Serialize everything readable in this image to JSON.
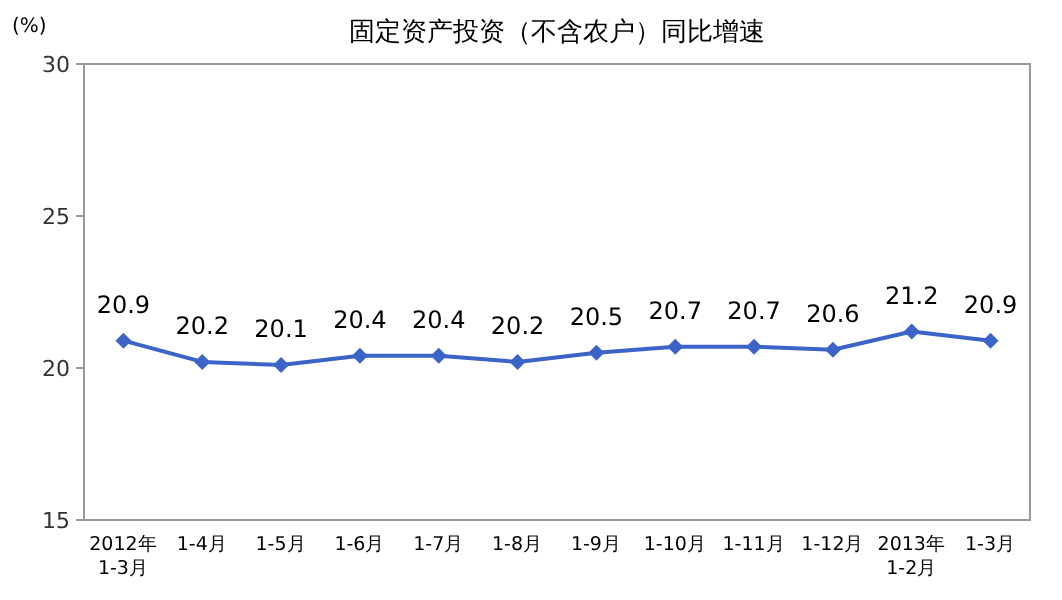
{
  "chart_data": {
    "type": "line",
    "title": "固定资产投资（不含农户）同比增速",
    "ylabel": "(%)",
    "categories": [
      "2012年\n1-3月",
      "1-4月",
      "1-5月",
      "1-6月",
      "1-7月",
      "1-8月",
      "1-9月",
      "1-10月",
      "1-11月",
      "1-12月",
      "2013年\n1-2月",
      "1-3月"
    ],
    "values": [
      20.9,
      20.2,
      20.1,
      20.4,
      20.4,
      20.2,
      20.5,
      20.7,
      20.7,
      20.6,
      21.2,
      20.9
    ],
    "color": "#3c64c8",
    "ylim": [
      15,
      30
    ],
    "yticks": [
      15,
      20,
      25,
      30
    ],
    "data_labels": true,
    "marker": "diamond",
    "line_style": "solid"
  }
}
